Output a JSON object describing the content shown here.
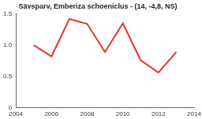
{
  "chart_data": {
    "type": "line",
    "title": "Sävsparv, Emberiza schoeniclus - (14, -4,8, NS)",
    "x": [
      2005,
      2006,
      2007,
      2008,
      2009,
      2010,
      2011,
      2012,
      2013
    ],
    "values": [
      1.0,
      0.82,
      1.42,
      1.34,
      0.89,
      1.35,
      0.76,
      0.56,
      0.89
    ],
    "color": "#e8312a",
    "xlim": [
      2004,
      2014
    ],
    "xticks": [
      2004,
      2006,
      2008,
      2010,
      2012,
      2014
    ],
    "ylim": [
      0,
      1.5
    ],
    "yticks": [
      0,
      0.5,
      {
        "value": 1.0,
        "label": "1.0"
      },
      1.5
    ],
    "grid": false
  }
}
